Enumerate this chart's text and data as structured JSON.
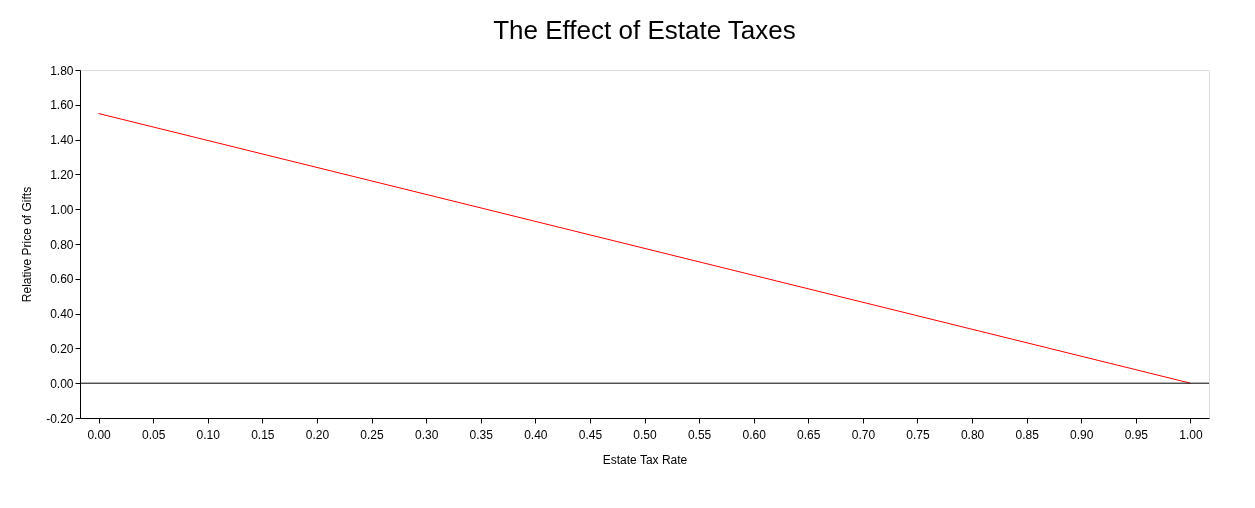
{
  "chart_data": {
    "type": "line",
    "title": "The Effect of Estate Taxes",
    "xlabel": "Estate Tax Rate",
    "ylabel": "Relative Price of Gifts",
    "x": [
      0,
      1
    ],
    "series": [
      {
        "color": "#ff0000",
        "values": [
          1.55,
          0
        ]
      }
    ],
    "xlim": [
      -0.017,
      1.017
    ],
    "xticks": [
      {
        "value": 0,
        "label": "0.00"
      },
      0.05,
      {
        "value": 0.1,
        "label": "0.10"
      },
      0.15,
      {
        "value": 0.2,
        "label": "0.20"
      },
      0.25,
      {
        "value": 0.3,
        "label": "0.30"
      },
      0.35,
      {
        "value": 0.4,
        "label": "0.40"
      },
      0.45,
      {
        "value": 0.5,
        "label": "0.50"
      },
      0.55,
      {
        "value": 0.6,
        "label": "0.60"
      },
      0.65,
      {
        "value": 0.7,
        "label": "0.70"
      },
      0.75,
      {
        "value": 0.8,
        "label": "0.80"
      },
      0.85,
      {
        "value": 0.9,
        "label": "0.90"
      },
      0.95,
      {
        "value": 1,
        "label": "1.00"
      }
    ],
    "ylim": [
      -0.2,
      1.8
    ],
    "yticks": [
      {
        "value": -0.2,
        "label": "-0.20"
      },
      {
        "value": 0,
        "label": "0.00"
      },
      {
        "value": 0.2,
        "label": "0.20"
      },
      {
        "value": 0.4,
        "label": "0.40"
      },
      {
        "value": 0.6,
        "label": "0.60"
      },
      {
        "value": 0.8,
        "label": "0.80"
      },
      {
        "value": 1,
        "label": "1.00"
      },
      {
        "value": 1.2,
        "label": "1.20"
      },
      {
        "value": 1.4,
        "label": "1.40"
      },
      {
        "value": 1.6,
        "label": "1.60"
      },
      {
        "value": 1.8,
        "label": "1.80"
      }
    ],
    "ref_lines": [
      {
        "axis": "y",
        "value": 0,
        "color": "#000000"
      }
    ],
    "grid": false,
    "legend": false,
    "marker": "none",
    "line_style": "solid"
  }
}
